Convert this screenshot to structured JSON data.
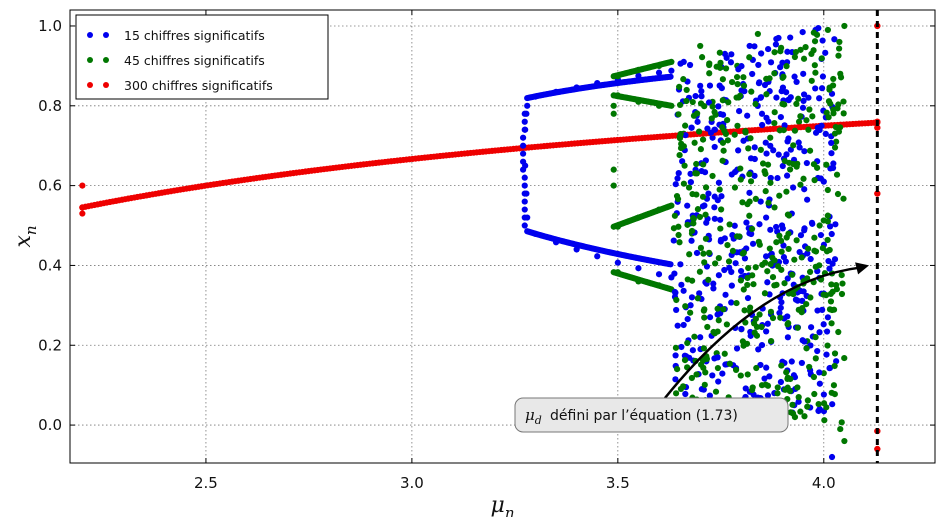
{
  "chart_data": {
    "type": "scatter",
    "title": "",
    "xlabel": "μ",
    "xlabel_sub": "n",
    "ylabel": "x",
    "ylabel_sub": "n",
    "xlim": [
      2.17,
      4.27
    ],
    "ylim": [
      -0.095,
      1.04
    ],
    "xticks": [
      2.5,
      3.0,
      3.5,
      4.0
    ],
    "xtick_labels": [
      "2.5",
      "3.0",
      "3.5",
      "4.0"
    ],
    "yticks": [
      0.0,
      0.2,
      0.4,
      0.6,
      0.8,
      1.0
    ],
    "ytick_labels": [
      "0.0",
      "0.2",
      "0.4",
      "0.6",
      "0.8",
      "1.0"
    ],
    "grid": true,
    "legend_position": "top-left",
    "series": [
      {
        "name": "15 chiffres significatifs",
        "color": "#0000ee",
        "description_of_points": "logistic-map orbit: fixed point 1-1/mu up to 3.27, period-2 branches 3.27-3.63, chaotic scatter 3.63-4.03",
        "points": [
          [
            3.27,
            0.694
          ],
          [
            3.275,
            0.74
          ],
          [
            3.275,
            0.65
          ],
          [
            3.278,
            0.78
          ],
          [
            3.278,
            0.58
          ],
          [
            3.28,
            0.8
          ],
          [
            3.28,
            0.52
          ],
          [
            3.3,
            0.823
          ],
          [
            3.35,
            0.835
          ],
          [
            3.4,
            0.846
          ],
          [
            3.45,
            0.857
          ],
          [
            3.5,
            0.866
          ],
          [
            3.55,
            0.875
          ],
          [
            3.6,
            0.883
          ],
          [
            3.63,
            0.888
          ],
          [
            3.3,
            0.479
          ],
          [
            3.35,
            0.458
          ],
          [
            3.4,
            0.44
          ],
          [
            3.45,
            0.423
          ],
          [
            3.5,
            0.407
          ],
          [
            3.55,
            0.393
          ],
          [
            3.6,
            0.378
          ],
          [
            3.63,
            0.37
          ],
          [
            3.66,
            0.91
          ],
          [
            3.68,
            0.32
          ],
          [
            3.7,
            0.85
          ],
          [
            3.7,
            0.22
          ],
          [
            3.72,
            0.58
          ],
          [
            3.73,
            0.72
          ],
          [
            3.75,
            0.46
          ],
          [
            3.76,
            0.93
          ],
          [
            3.78,
            0.15
          ],
          [
            3.79,
            0.64
          ],
          [
            3.8,
            0.37
          ],
          [
            3.82,
            0.95
          ],
          [
            3.83,
            0.26
          ],
          [
            3.85,
            0.78
          ],
          [
            3.86,
            0.52
          ],
          [
            3.88,
            0.08
          ],
          [
            3.89,
            0.97
          ],
          [
            3.9,
            0.33
          ],
          [
            3.92,
            0.69
          ],
          [
            3.93,
            0.12
          ],
          [
            3.95,
            0.88
          ],
          [
            3.96,
            0.43
          ],
          [
            3.98,
            0.99
          ],
          [
            3.99,
            0.04
          ],
          [
            4.0,
            0.61
          ],
          [
            4.01,
            0.27
          ],
          [
            4.02,
            0.83
          ],
          [
            4.02,
            -0.08
          ],
          [
            4.03,
            0.16
          ]
        ]
      },
      {
        "name": "45 chiffres significatifs",
        "color": "#007700",
        "description_of_points": "logistic-map orbit: fixed point, period-2 window near 3.49, period-4 branches 3.49-3.63, chaotic scatter 3.63-4.05",
        "points": [
          [
            3.49,
            0.8
          ],
          [
            3.49,
            0.78
          ],
          [
            3.49,
            0.6
          ],
          [
            3.49,
            0.64
          ],
          [
            3.5,
            0.874
          ],
          [
            3.55,
            0.89
          ],
          [
            3.6,
            0.9
          ],
          [
            3.63,
            0.91
          ],
          [
            3.5,
            0.826
          ],
          [
            3.55,
            0.81
          ],
          [
            3.6,
            0.8
          ],
          [
            3.63,
            0.8
          ],
          [
            3.5,
            0.497
          ],
          [
            3.55,
            0.52
          ],
          [
            3.6,
            0.54
          ],
          [
            3.63,
            0.55
          ],
          [
            3.5,
            0.383
          ],
          [
            3.55,
            0.36
          ],
          [
            3.6,
            0.35
          ],
          [
            3.63,
            0.34
          ],
          [
            3.66,
            0.73
          ],
          [
            3.68,
            0.48
          ],
          [
            3.7,
            0.95
          ],
          [
            3.71,
            0.29
          ],
          [
            3.73,
            0.81
          ],
          [
            3.74,
            0.18
          ],
          [
            3.76,
            0.66
          ],
          [
            3.77,
            0.41
          ],
          [
            3.79,
            0.9
          ],
          [
            3.8,
            0.24
          ],
          [
            3.82,
            0.56
          ],
          [
            3.84,
            0.98
          ],
          [
            3.85,
            0.1
          ],
          [
            3.87,
            0.72
          ],
          [
            3.88,
            0.35
          ],
          [
            3.9,
            0.87
          ],
          [
            3.91,
            0.47
          ],
          [
            3.93,
            0.02
          ],
          [
            3.94,
            0.76
          ],
          [
            3.96,
            0.21
          ],
          [
            3.97,
            0.93
          ],
          [
            3.99,
            0.5
          ],
          [
            4.0,
            0.13
          ],
          [
            4.01,
            0.99
          ],
          [
            4.02,
            0.38
          ],
          [
            4.03,
            0.71
          ],
          [
            4.04,
            -0.01
          ],
          [
            4.04,
            0.88
          ],
          [
            4.05,
            1.0
          ],
          [
            4.05,
            -0.04
          ]
        ]
      },
      {
        "name": "300 chiffres significatifs",
        "color": "#ee0000",
        "description_of_points": "fixed point x = 1 - 1/mu across the whole range, plus a few outliers",
        "points": [
          [
            2.2,
            0.6
          ],
          [
            2.2,
            0.53
          ],
          [
            2.2,
            0.545
          ],
          [
            4.13,
            1.0
          ],
          [
            4.13,
            0.58
          ],
          [
            4.13,
            -0.015
          ],
          [
            4.13,
            -0.06
          ],
          [
            4.13,
            0.76
          ],
          [
            4.13,
            0.745
          ]
        ],
        "curve": {
          "formula": "1 - 1/mu",
          "from": 2.2,
          "to": 4.13
        }
      }
    ],
    "vertical_line": {
      "x": 4.13,
      "style": "dashed",
      "color": "#000000"
    },
    "annotation": {
      "symbol": "μ",
      "symbol_sub": "d",
      "text": "défini par l’équation (1.73)",
      "arrow_target": [
        4.11,
        0.4
      ]
    }
  }
}
